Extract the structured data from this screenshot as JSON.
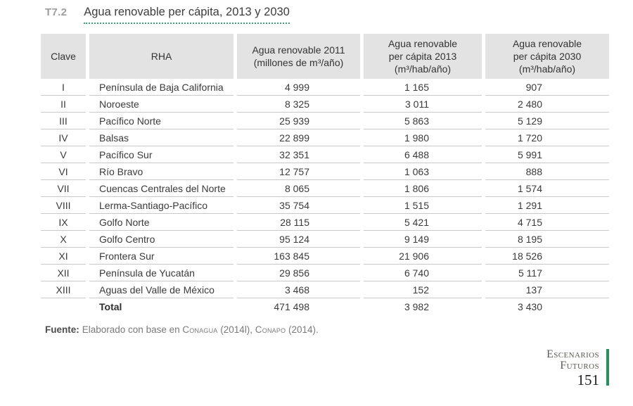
{
  "page": {
    "title_tag": "T7.2",
    "title": "Agua renovable per cápita, 2013 y 2030"
  },
  "table": {
    "columns": [
      "Clave",
      "RHA",
      "Agua renovable 2011\n(millones de m³/año)",
      "Agua renovable\nper cápita 2013\n(m³/hab/año)",
      "Agua renovable\nper cápita 2030\n(m³/hab/año)"
    ],
    "rows": [
      {
        "clave": "I",
        "rha": "Península de Baja California",
        "agua_2011": "4 999",
        "per_capita_2013": "1 165",
        "per_capita_2030": "907"
      },
      {
        "clave": "II",
        "rha": "Noroeste",
        "agua_2011": "8 325",
        "per_capita_2013": "3 011",
        "per_capita_2030": "2 480"
      },
      {
        "clave": "III",
        "rha": "Pacífico Norte",
        "agua_2011": "25 939",
        "per_capita_2013": "5 863",
        "per_capita_2030": "5 129"
      },
      {
        "clave": "IV",
        "rha": "Balsas",
        "agua_2011": "22 899",
        "per_capita_2013": "1 980",
        "per_capita_2030": "1 720"
      },
      {
        "clave": "V",
        "rha": "Pacífico Sur",
        "agua_2011": "32 351",
        "per_capita_2013": "6 488",
        "per_capita_2030": "5 991"
      },
      {
        "clave": "VI",
        "rha": "Río Bravo",
        "agua_2011": "12 757",
        "per_capita_2013": "1 063",
        "per_capita_2030": "888"
      },
      {
        "clave": "VII",
        "rha": "Cuencas Centrales del Norte",
        "agua_2011": "8 065",
        "per_capita_2013": "1 806",
        "per_capita_2030": "1 574"
      },
      {
        "clave": "VIII",
        "rha": "Lerma-Santiago-Pacífico",
        "agua_2011": "35 754",
        "per_capita_2013": "1 515",
        "per_capita_2030": "1 291"
      },
      {
        "clave": "IX",
        "rha": "Golfo Norte",
        "agua_2011": "28 115",
        "per_capita_2013": "5 421",
        "per_capita_2030": "4 715"
      },
      {
        "clave": "X",
        "rha": "Golfo Centro",
        "agua_2011": "95 124",
        "per_capita_2013": "9 149",
        "per_capita_2030": "8 195"
      },
      {
        "clave": "XI",
        "rha": "Frontera Sur",
        "agua_2011": "163 845",
        "per_capita_2013": "21 906",
        "per_capita_2030": "18 526"
      },
      {
        "clave": "XII",
        "rha": "Península de Yucatán",
        "agua_2011": "29 856",
        "per_capita_2013": "6 740",
        "per_capita_2030": "5 117"
      },
      {
        "clave": "XIII",
        "rha": "Aguas del Valle de México",
        "agua_2011": "3 468",
        "per_capita_2013": "152",
        "per_capita_2030": "137"
      }
    ],
    "total": {
      "clave": "",
      "label": "Total",
      "agua_2011": "471 498",
      "per_capita_2013": "3 982",
      "per_capita_2030": "3 430"
    }
  },
  "source": {
    "label": "Fuente:",
    "parts": [
      "Elaborado con base en ",
      "Conagua",
      " (2014l), ",
      "Conapo",
      " (2014)."
    ]
  },
  "footer": {
    "section_line1": "Escenarios",
    "section_line2": "Futuros",
    "page_number": "151"
  },
  "colors": {
    "header_bg": "#e3e3e3",
    "row_divider": "#c9c9c9",
    "accent_green_dots": "#3fa076",
    "accent_green_bar": "#26915a",
    "title_tag_gray": "#9d9d9d"
  }
}
